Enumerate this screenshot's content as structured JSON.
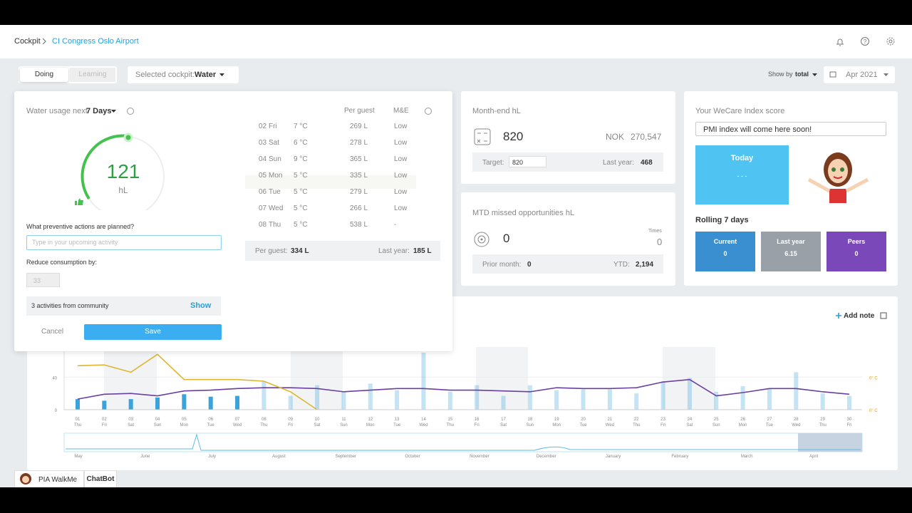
{
  "header": {
    "breadcrumb": [
      "Cockpit",
      "CI Congress Oslo Airport"
    ]
  },
  "toolbar": {
    "tabs": [
      "Doing",
      "Learning"
    ],
    "cockpit_label": "Selected cockpit:",
    "cockpit": "Water",
    "show_by_label": "Show by",
    "show_by": "total",
    "month": "Apr 2021"
  },
  "usage": {
    "label": "Water usage next",
    "period": "7 Days",
    "gauge_value": 121,
    "gauge_unit": "hL"
  },
  "actions": {
    "question": "What preventive actions are planned?",
    "placeholder": "Type in your upcoming activity",
    "reduce_label": "Reduce consumption by:",
    "reduce_value": 33,
    "community": "3 activities from community",
    "show": "Show",
    "cancel": "Cancel",
    "save": "Save"
  },
  "forecast": {
    "headers": [
      "Per guest",
      "M&E"
    ],
    "rows": [
      [
        "02",
        "Fri",
        "7 °C",
        "269 L",
        "Low"
      ],
      [
        "03",
        "Sat",
        "6 °C",
        "278 L",
        "Low"
      ],
      [
        "04",
        "Sun",
        "9 °C",
        "365 L",
        "Low"
      ],
      [
        "05",
        "Mon",
        "5 °C",
        "335 L",
        "Low"
      ],
      [
        "06",
        "Tue",
        "5 °C",
        "279 L",
        "Low"
      ],
      [
        "07",
        "Wed",
        "5 °C",
        "266 L",
        "Low"
      ],
      [
        "08",
        "Thu",
        "5 °C",
        "538 L",
        "-"
      ]
    ],
    "footer": {
      "per_guest_label": "Per guest:",
      "per_guest": "334 L",
      "last_year_label": "Last year:",
      "last_year": "185 L"
    }
  },
  "month_end": {
    "title": "Month-end hL",
    "value": 820,
    "currency": "NOK",
    "amount": "270,547",
    "target_label": "Target:",
    "target": 820,
    "last_year_label": "Last year:",
    "last_year": 468
  },
  "mtd": {
    "title": "MTD missed opportunities hL",
    "value": 0,
    "times_label": "Times",
    "times": 0,
    "prior_label": "Prior month:",
    "prior": 0,
    "ytd_label": "YTD:",
    "ytd": "2,194"
  },
  "wecare": {
    "title": "Your WeCare Index score",
    "message": "PMI index will come here soon!",
    "today": "Today",
    "today_value": "- - -",
    "rolling": "Rolling 7 days",
    "tiles": [
      {
        "label": "Current",
        "value": 0,
        "color": "#3a8fd0"
      },
      {
        "label": "Last year",
        "value": 6.15,
        "color": "#9aa0a8"
      },
      {
        "label": "Peers",
        "value": 0,
        "color": "#7a48b8"
      }
    ]
  },
  "usage_chart": {
    "type": "bar",
    "add_note": "Add note",
    "categories": [
      "01",
      "02",
      "03",
      "04",
      "05",
      "06",
      "07",
      "08",
      "09",
      "10",
      "11",
      "12",
      "13",
      "14",
      "15",
      "16",
      "17",
      "18",
      "19",
      "20",
      "21",
      "22",
      "23",
      "24",
      "25",
      "26",
      "27",
      "28",
      "29",
      "30"
    ],
    "weekdays": [
      "Thu",
      "Fri",
      "Sat",
      "Sun",
      "Mon",
      "Tue",
      "Wed",
      "Thu",
      "Fri",
      "Sat",
      "Sun",
      "Mon",
      "Tue",
      "Wed",
      "Thu",
      "Fri",
      "Sat",
      "Sun",
      "Mon",
      "Tue",
      "Wed",
      "Thu",
      "Fri",
      "Sat",
      "Sun",
      "Mon",
      "Tue",
      "Wed",
      "Thu",
      "Fri"
    ],
    "ylim": [
      0,
      77
    ],
    "yticks": [
      0,
      40
    ],
    "y2_labels": [
      "0° C",
      "0° C"
    ],
    "series": [
      {
        "kind": "bar",
        "color": "#3ba3dc",
        "values": [
          13,
          11,
          13,
          15,
          19,
          16,
          17,
          35,
          17,
          30,
          22,
          32,
          24,
          70,
          22,
          30,
          17,
          30,
          24,
          25,
          25,
          20,
          35,
          39,
          22,
          29,
          26,
          46,
          20,
          17
        ]
      },
      {
        "kind": "line",
        "color": "#6b3fa0",
        "values": [
          13,
          19,
          20,
          17,
          23,
          24,
          26,
          27,
          27,
          26,
          22,
          24,
          26,
          26,
          24,
          24,
          23,
          22,
          27,
          26,
          26,
          27,
          34,
          37,
          17,
          21,
          26,
          26,
          22,
          19
        ]
      },
      {
        "kind": "line",
        "color": "#e0b530",
        "values": [
          54,
          55,
          46,
          68,
          37,
          37,
          37,
          35,
          22,
          0,
          null,
          null,
          null,
          null,
          null,
          null,
          null,
          null,
          null,
          null,
          null,
          null,
          null,
          null,
          null,
          null,
          null,
          null,
          null,
          null
        ]
      }
    ],
    "months": [
      "May",
      "June",
      "July",
      "August",
      "September",
      "October",
      "November",
      "December",
      "January",
      "February",
      "March",
      "April"
    ]
  },
  "footer": [
    "PIA WalkMe",
    "ChatBot"
  ]
}
